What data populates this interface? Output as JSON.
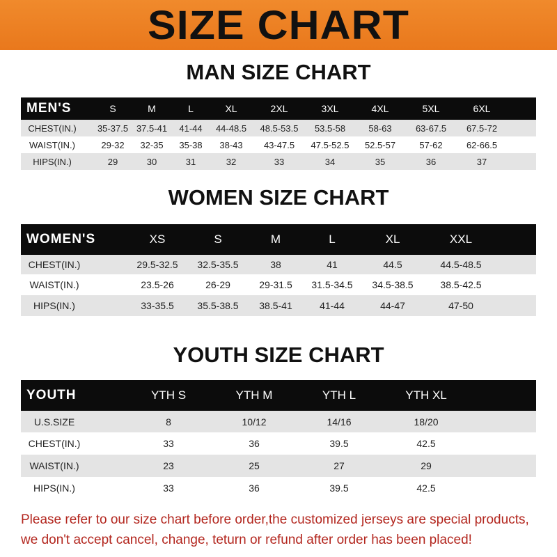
{
  "banner": "SIZE CHART",
  "men": {
    "title": "MAN SIZE CHART",
    "header": [
      "MEN'S",
      "S",
      "M",
      "L",
      "XL",
      "2XL",
      "3XL",
      "4XL",
      "5XL",
      "6XL"
    ],
    "rows": [
      [
        "CHEST(IN.)",
        "35-37.5",
        "37.5-41",
        "41-44",
        "44-48.5",
        "48.5-53.5",
        "53.5-58",
        "58-63",
        "63-67.5",
        "67.5-72"
      ],
      [
        "WAIST(IN.)",
        "29-32",
        "32-35",
        "35-38",
        "38-43",
        "43-47.5",
        "47.5-52.5",
        "52.5-57",
        "57-62",
        "62-66.5"
      ],
      [
        "HIPS(IN.)",
        "29",
        "30",
        "31",
        "32",
        "33",
        "34",
        "35",
        "36",
        "37"
      ]
    ]
  },
  "women": {
    "title": "WOMEN SIZE CHART",
    "header": [
      "WOMEN'S",
      "XS",
      "S",
      "M",
      "L",
      "XL",
      "XXL"
    ],
    "rows": [
      [
        "CHEST(IN.)",
        "29.5-32.5",
        "32.5-35.5",
        "38",
        "41",
        "44.5",
        "44.5-48.5"
      ],
      [
        "WAIST(IN.)",
        "23.5-26",
        "26-29",
        "29-31.5",
        "31.5-34.5",
        "34.5-38.5",
        "38.5-42.5"
      ],
      [
        "HIPS(IN.)",
        "33-35.5",
        "35.5-38.5",
        "38.5-41",
        "41-44",
        "44-47",
        "47-50"
      ]
    ]
  },
  "youth": {
    "title": "YOUTH SIZE CHART",
    "header": [
      "YOUTH",
      "YTH S",
      "YTH M",
      "YTH L",
      "YTH XL"
    ],
    "rows": [
      [
        "U.S.SIZE",
        "8",
        "10/12",
        "14/16",
        "18/20"
      ],
      [
        "CHEST(IN.)",
        "33",
        "36",
        "39.5",
        "42.5"
      ],
      [
        "WAIST(IN.)",
        "23",
        "25",
        "27",
        "29"
      ],
      [
        "HIPS(IN.)",
        "33",
        "36",
        "39.5",
        "42.5"
      ]
    ]
  },
  "note": {
    "line1": "Please refer to our size chart before order,the customized jerseys are special products,",
    "line2": "we don't accept cancel, change, teturn or refund after order has been placed!"
  },
  "colors": {
    "banner": "#ec8025",
    "header": "#0c0c0c",
    "note": "#b3261e"
  }
}
